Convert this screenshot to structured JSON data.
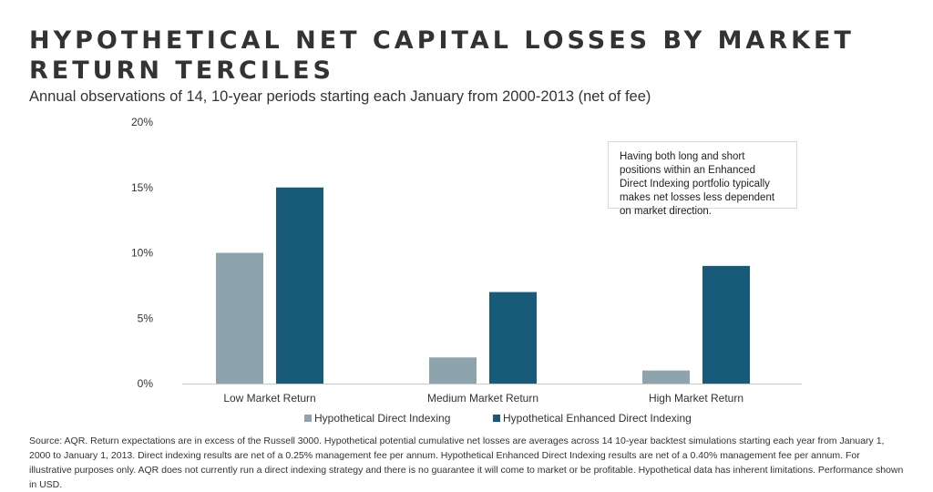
{
  "title_line1": "HYPOTHETICAL NET CAPITAL LOSSES BY MARKET",
  "title_line2": "RETURN TERCILES",
  "subtitle": "Annual observations of 14, 10-year periods starting each January from 2000-2013 (net of fee)",
  "annotation": "Having both long and short positions within an Enhanced Direct Indexing portfolio typically makes net losses less dependent on market direction.",
  "source": "Source: AQR. Return expectations are in excess of the Russell 3000. Hypothetical potential cumulative net losses are averages across 14 10-year backtest simulations starting each year from January 1, 2000 to January 1, 2013. Direct indexing results are net of a 0.25% management fee per annum. Hypothetical Enhanced Direct Indexing results are net of a 0.40% management fee per annum. For illustrative purposes only. AQR does not currently run a direct indexing strategy and there is no guarantee it will come to market or be profitable. Hypothetical data has inherent limitations. Performance shown in USD.",
  "chart_data": {
    "type": "bar",
    "categories": [
      "Low Market Return",
      "Medium Market Return",
      "High Market Return"
    ],
    "series": [
      {
        "name": "Hypothetical Direct Indexing",
        "values": [
          10,
          2,
          1
        ],
        "color": "#8ea4ad"
      },
      {
        "name": "Hypothetical Enhanced Direct Indexing",
        "values": [
          15,
          7,
          9
        ],
        "color": "#175a7a"
      }
    ],
    "ylim": [
      0,
      20
    ],
    "yticks": [
      0,
      5,
      10,
      15,
      20
    ],
    "ytick_labels": [
      "0%",
      "5%",
      "10%",
      "15%",
      "20%"
    ],
    "grid": false,
    "legend_position": "bottom-center"
  }
}
